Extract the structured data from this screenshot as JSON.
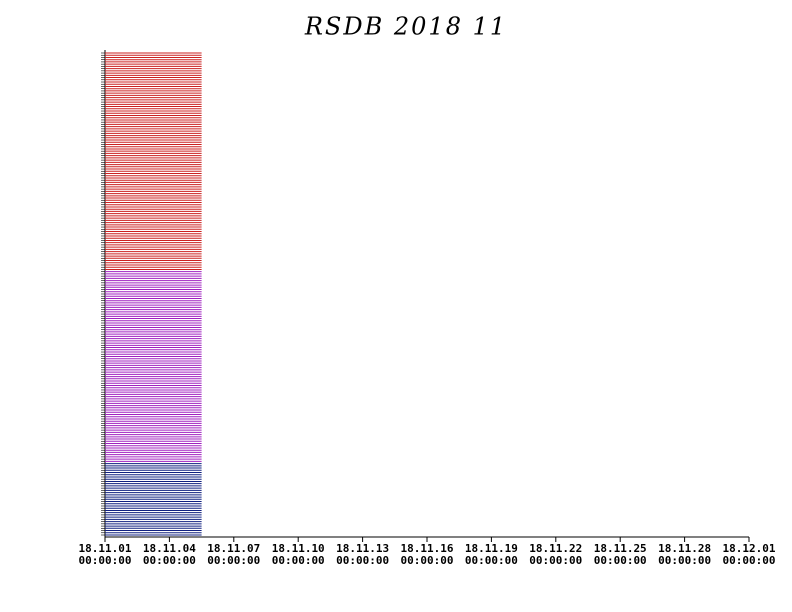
{
  "chart_data": {
    "type": "availability",
    "title": "RSDB  2018  11",
    "xlim": [
      0,
      30
    ],
    "xticks": [
      {
        "value": 0,
        "label": "18.11.01"
      },
      {
        "value": 3,
        "label": "18.11.04"
      },
      {
        "value": 6,
        "label": "18.11.07"
      },
      {
        "value": 9,
        "label": "18.11.10"
      },
      {
        "value": 12,
        "label": "18.11.13"
      },
      {
        "value": 15,
        "label": "18.11.16"
      },
      {
        "value": 18,
        "label": "18.11.19"
      },
      {
        "value": 21,
        "label": "18.11.22"
      },
      {
        "value": 24,
        "label": "18.11.25"
      },
      {
        "value": 27,
        "label": "18.11.28"
      },
      {
        "value": 30,
        "label": "18.12.01"
      }
    ],
    "xtick_sublabels": [
      "00:00:00",
      "00:00:00",
      "00:00:00",
      "00:00:00",
      "00:00:00",
      "00:00:00",
      "00:00:00",
      "00:00:00",
      "00:00:00",
      "00:00:00",
      "00:00:00"
    ],
    "groups": [
      {
        "color": "#cc2020",
        "row_count": 98,
        "start": 0,
        "end": 4.5
      },
      {
        "color": "#a020c0",
        "row_count": 86,
        "start": 0,
        "end": 4.5
      },
      {
        "color": "#102080",
        "row_count": 33,
        "start": 0,
        "end": 4.5
      }
    ]
  }
}
